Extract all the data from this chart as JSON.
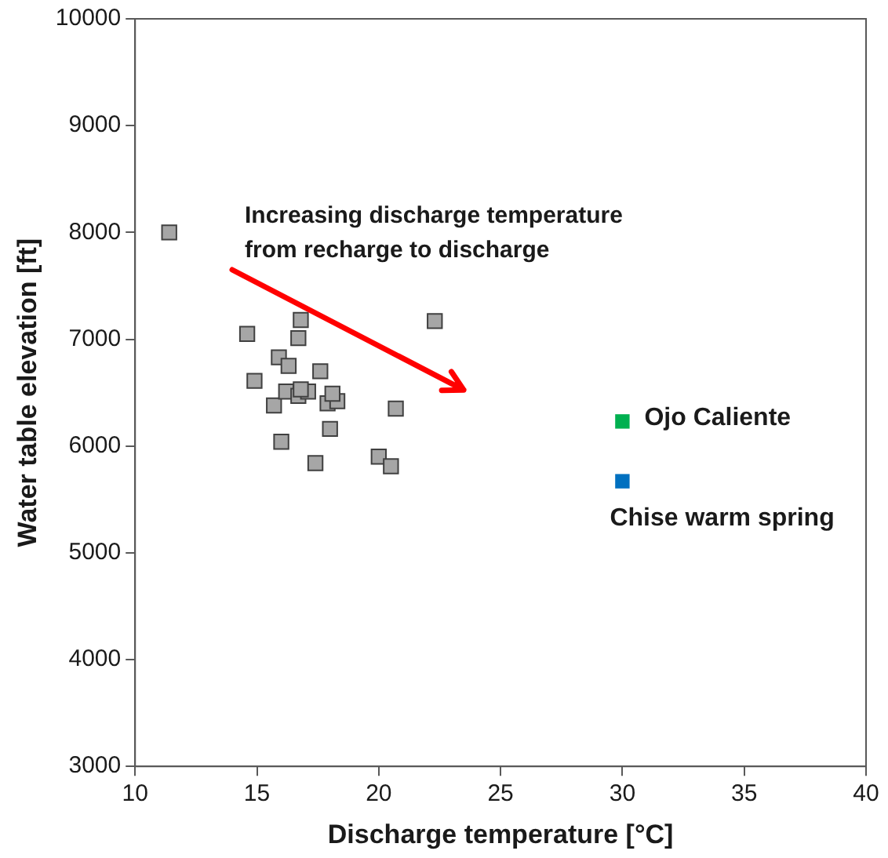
{
  "chart_data": {
    "type": "scatter",
    "xlabel": "Discharge temperature [°C]",
    "ylabel": "Water table elevation [ft]",
    "xlim": [
      10,
      40
    ],
    "xticks": [
      10,
      15,
      20,
      25,
      30,
      35,
      40
    ],
    "ylim": [
      3000,
      10000
    ],
    "yticks": [
      3000,
      4000,
      5000,
      6000,
      7000,
      8000,
      9000,
      10000
    ],
    "grid": false,
    "legend": false,
    "marker": "square",
    "annotations": [
      "Increasing discharge temperature\nfrom recharge to discharge"
    ],
    "series": [
      {
        "color": "#a6a6a6",
        "x": [
          11.4,
          14.6,
          16.8,
          16.7,
          22.3,
          15.9,
          16.3,
          17.6,
          14.9,
          15.7,
          16.2,
          16.7,
          17.1,
          16.8,
          17.9,
          18.3,
          18.1,
          20.7,
          16.0,
          18.0,
          17.4,
          20.0,
          20.5
        ],
        "values": [
          8000,
          7050,
          7180,
          7010,
          7170,
          6830,
          6750,
          6700,
          6610,
          6380,
          6510,
          6470,
          6510,
          6530,
          6400,
          6420,
          6490,
          6350,
          6040,
          6160,
          5840,
          5900,
          5810
        ]
      },
      {
        "name": "Ojo Caliente",
        "color": "#00b050",
        "x": [
          30
        ],
        "values": [
          6230
        ]
      },
      {
        "name": "Chise warm spring",
        "color": "#0070c0",
        "x": [
          30
        ],
        "values": [
          5670
        ]
      }
    ]
  }
}
